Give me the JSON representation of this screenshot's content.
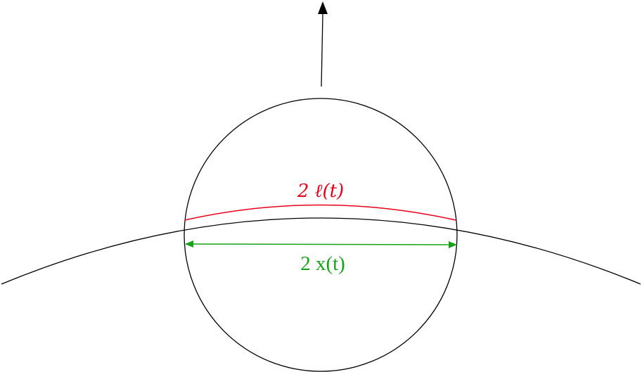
{
  "labels": {
    "arc_length": "2 ℓ(t)",
    "chord_width": "2 x(t)"
  },
  "colors": {
    "stroke": "#000000",
    "arc": "#e8001a",
    "chord": "#16a316",
    "background": "#ffffff"
  },
  "icons": {
    "up_arrow": "arrow-up-icon",
    "chord_arrows": "double-headed-arrow-icon"
  }
}
